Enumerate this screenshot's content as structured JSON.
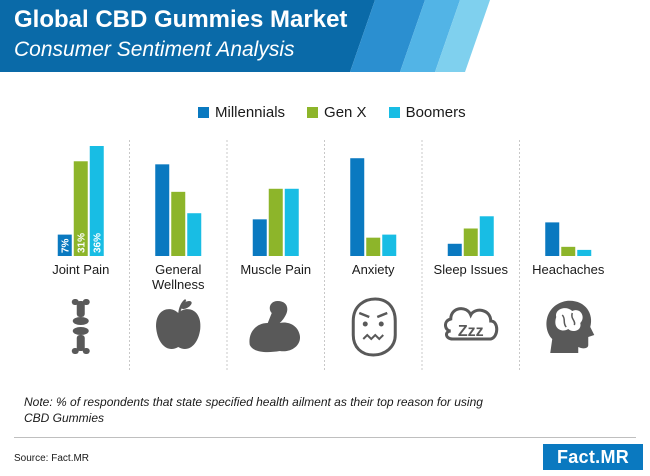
{
  "header": {
    "title": "Global CBD Gummies Market",
    "subtitle": "Consumer Sentiment Analysis"
  },
  "legend": [
    {
      "label": "Millennials",
      "color": "#0a79c0"
    },
    {
      "label": "Gen X",
      "color": "#8db52a"
    },
    {
      "label": "Boomers",
      "color": "#18bde4"
    }
  ],
  "colors": {
    "millennials": "#0a79c0",
    "gen_x": "#8db52a",
    "boomers": "#18bde4",
    "banner_dark": "#0a6aa8",
    "banner_light": "#7fd0ee",
    "icon": "#595959"
  },
  "chart_data": {
    "type": "bar",
    "categories": [
      "Joint Pain",
      "General Wellness",
      "Muscle Pain",
      "Anxiety",
      "Sleep Issues",
      "Heachaches"
    ],
    "category_lines": [
      [
        "Joint Pain"
      ],
      [
        "General",
        "Wellness"
      ],
      [
        "Muscle Pain"
      ],
      [
        "Anxiety"
      ],
      [
        "Sleep Issues"
      ],
      [
        "Heachaches"
      ]
    ],
    "series": [
      {
        "name": "Millennials",
        "values": [
          7,
          30,
          12,
          32,
          4,
          11
        ]
      },
      {
        "name": "Gen X",
        "values": [
          31,
          21,
          22,
          6,
          9,
          3
        ]
      },
      {
        "name": "Boomers",
        "values": [
          36,
          14,
          22,
          7,
          13,
          2
        ]
      }
    ],
    "data_labels": {
      "Joint Pain": [
        "7%",
        "31%",
        "36%"
      ]
    },
    "ylim": [
      0,
      36
    ],
    "legend_position": "top",
    "grid": false,
    "icons": [
      "bone-joint-icon",
      "apple-icon",
      "flexed-arm-icon",
      "anxious-face-icon",
      "sleep-zzz-icon",
      "head-brain-icon"
    ]
  },
  "note": "Note: % of respondents that state specified health ailment as their top reason for using CBD Gummies",
  "source": "Source: Fact.MR",
  "logo": "Fact.MR"
}
